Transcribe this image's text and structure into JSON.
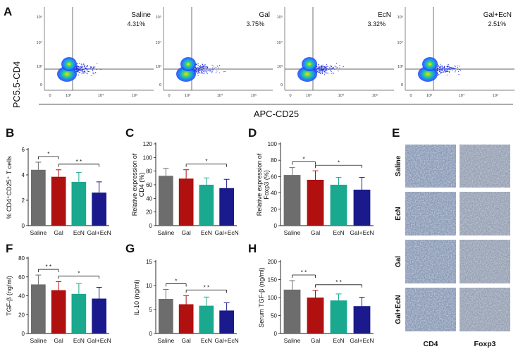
{
  "panels": {
    "A": {
      "label": "A",
      "y_axis_label": "PC5.5-CD4",
      "x_axis_label": "APC-CD25",
      "x_ticks": [
        "0",
        "10³",
        "10⁴",
        "10⁵"
      ],
      "y_ticks": [
        "0",
        "10³",
        "10⁴",
        "10⁵"
      ],
      "plots": [
        {
          "name": "Saline",
          "percent": "4.31%"
        },
        {
          "name": "Gal",
          "percent": "3.75%"
        },
        {
          "name": "EcN",
          "percent": "3.32%"
        },
        {
          "name": "Gal+EcN",
          "percent": "2.51%"
        }
      ]
    },
    "E": {
      "label": "E",
      "rows": [
        "Saline",
        "EcN",
        "Gal",
        "Gal+EcN"
      ],
      "columns": [
        "CD4",
        "Foxp3"
      ]
    }
  },
  "colors": {
    "Saline": "#6d6d6d",
    "Gal": "#b01010",
    "EcN": "#1aa88f",
    "Gal+EcN": "#1a1a8c"
  },
  "chart_data": [
    {
      "id": "B",
      "label": "B",
      "type": "bar",
      "categories": [
        "Saline",
        "Gal",
        "EcN",
        "Gal+EcN"
      ],
      "values": [
        4.4,
        3.85,
        3.45,
        2.6
      ],
      "errors": [
        0.6,
        0.55,
        0.75,
        0.85
      ],
      "ylabel": "% CD4⁺CD25⁺ T cells",
      "ylim": [
        0,
        6
      ],
      "yticks": [
        0,
        2,
        4,
        6
      ],
      "significance": [
        {
          "from": 0,
          "to": 1,
          "label": "*"
        },
        {
          "from": 1,
          "to": 3,
          "label": "* *"
        }
      ]
    },
    {
      "id": "C",
      "label": "C",
      "type": "bar",
      "categories": [
        "Saline",
        "Gal",
        "EcN",
        "Gal+EcN"
      ],
      "values": [
        73,
        69,
        60,
        55
      ],
      "errors": [
        11,
        13,
        10,
        13
      ],
      "ylabel": "Relative expression of CD4 (%)",
      "ylim": [
        0,
        120
      ],
      "yticks": [
        0,
        20,
        40,
        60,
        80,
        100,
        120
      ],
      "significance": [
        {
          "from": 1,
          "to": 3,
          "label": "*"
        }
      ]
    },
    {
      "id": "D",
      "label": "D",
      "type": "bar",
      "categories": [
        "Saline",
        "Gal",
        "EcN",
        "Gal+EcN"
      ],
      "values": [
        62,
        56,
        50,
        44
      ],
      "errors": [
        9,
        11,
        9,
        15
      ],
      "ylabel": "Relative expression of Foxp3 (%)",
      "ylim": [
        0,
        100
      ],
      "yticks": [
        0,
        20,
        40,
        60,
        80,
        100
      ],
      "significance": [
        {
          "from": 0,
          "to": 1,
          "label": "*"
        },
        {
          "from": 1,
          "to": 3,
          "label": "*"
        }
      ]
    },
    {
      "id": "F",
      "label": "F",
      "type": "bar",
      "categories": [
        "Saline",
        "Gal",
        "EcN",
        "Gal+EcN"
      ],
      "values": [
        52,
        46,
        42,
        37
      ],
      "errors": [
        10,
        9,
        11,
        12
      ],
      "ylabel": "TGF-β (ng/ml)",
      "ylim": [
        0,
        80
      ],
      "yticks": [
        0,
        20,
        40,
        60,
        80
      ],
      "significance": [
        {
          "from": 0,
          "to": 1,
          "label": "* *"
        },
        {
          "from": 1,
          "to": 3,
          "label": "*"
        }
      ]
    },
    {
      "id": "G",
      "label": "G",
      "type": "bar",
      "categories": [
        "Saline",
        "Gal",
        "EcN",
        "Gal+EcN"
      ],
      "values": [
        7.2,
        6.1,
        5.8,
        4.8
      ],
      "errors": [
        2.0,
        1.8,
        1.8,
        1.6
      ],
      "ylabel": "IL-10 (ng/ml)",
      "ylim": [
        0,
        15
      ],
      "yticks": [
        0,
        5,
        10,
        15
      ],
      "significance": [
        {
          "from": 0,
          "to": 1,
          "label": "*"
        },
        {
          "from": 1,
          "to": 3,
          "label": "* *"
        }
      ]
    },
    {
      "id": "H",
      "label": "H",
      "type": "bar",
      "categories": [
        "Saline",
        "Gal",
        "EcN",
        "Gal+EcN"
      ],
      "values": [
        122,
        100,
        92,
        76
      ],
      "errors": [
        25,
        20,
        18,
        25
      ],
      "ylabel": "Serum TGF-β (ng/ml)",
      "ylim": [
        0,
        200
      ],
      "yticks": [
        0,
        50,
        100,
        150,
        200
      ],
      "significance": [
        {
          "from": 0,
          "to": 1,
          "label": "* *"
        },
        {
          "from": 1,
          "to": 3,
          "label": "* *"
        }
      ]
    }
  ]
}
